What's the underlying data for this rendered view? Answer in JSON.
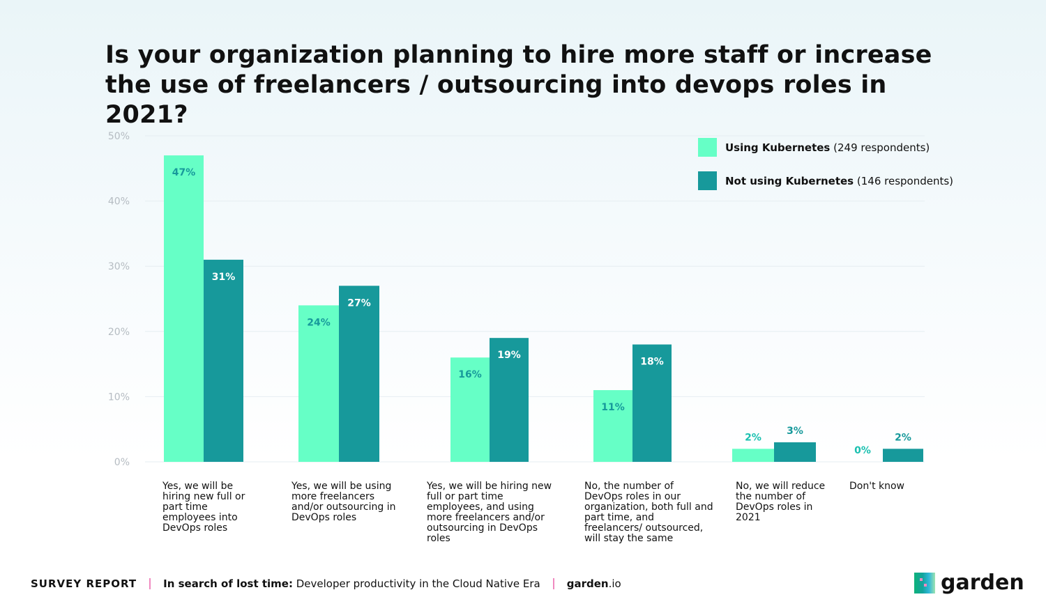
{
  "chart_data": {
    "type": "bar",
    "title": "Is your organization planning to hire more staff or increase the use of freelancers / outsourcing into devops roles in 2021?",
    "categories": [
      "Yes, we will be hiring new full or part time employees into DevOps roles",
      "Yes, we will be using more freelancers and/or outsourcing in DevOps roles",
      "Yes, we will be hiring new full or part time employees, and using more freelancers and/or outsourcing in DevOps roles",
      "No, the number of DevOps roles in our organization, both full and part time, and freelancers/ outsourced, will stay the same",
      "No, we will reduce the number of DevOps roles in 2021",
      "Don't know"
    ],
    "series": [
      {
        "name": "Using Kubernetes",
        "note": "(249 respondents)",
        "color": "#66ffc6",
        "values": [
          47,
          24,
          16,
          11,
          2,
          0
        ],
        "labels": [
          "47%",
          "24%",
          "16%",
          "11%",
          "2%",
          "0%"
        ]
      },
      {
        "name": "Not using Kubernetes",
        "note": "(146 respondents)",
        "color": "#17999b",
        "values": [
          31,
          27,
          19,
          18,
          3,
          2
        ],
        "labels": [
          "31%",
          "27%",
          "19%",
          "18%",
          "3%",
          "2%"
        ]
      }
    ],
    "yticks": [
      "0%",
      "10%",
      "20%",
      "30%",
      "40%",
      "50%"
    ],
    "ylim": [
      0,
      50
    ],
    "xlabel": "",
    "ylabel": "",
    "grid": true,
    "legend": "top-right"
  },
  "footer": {
    "report": "SURVEY REPORT",
    "subtitle_bold": "In search of lost time:",
    "subtitle": "Developer productivity in the Cloud Native Era",
    "site_bold": "garden",
    "site_rest": ".io"
  },
  "logo": {
    "text": "garden"
  }
}
